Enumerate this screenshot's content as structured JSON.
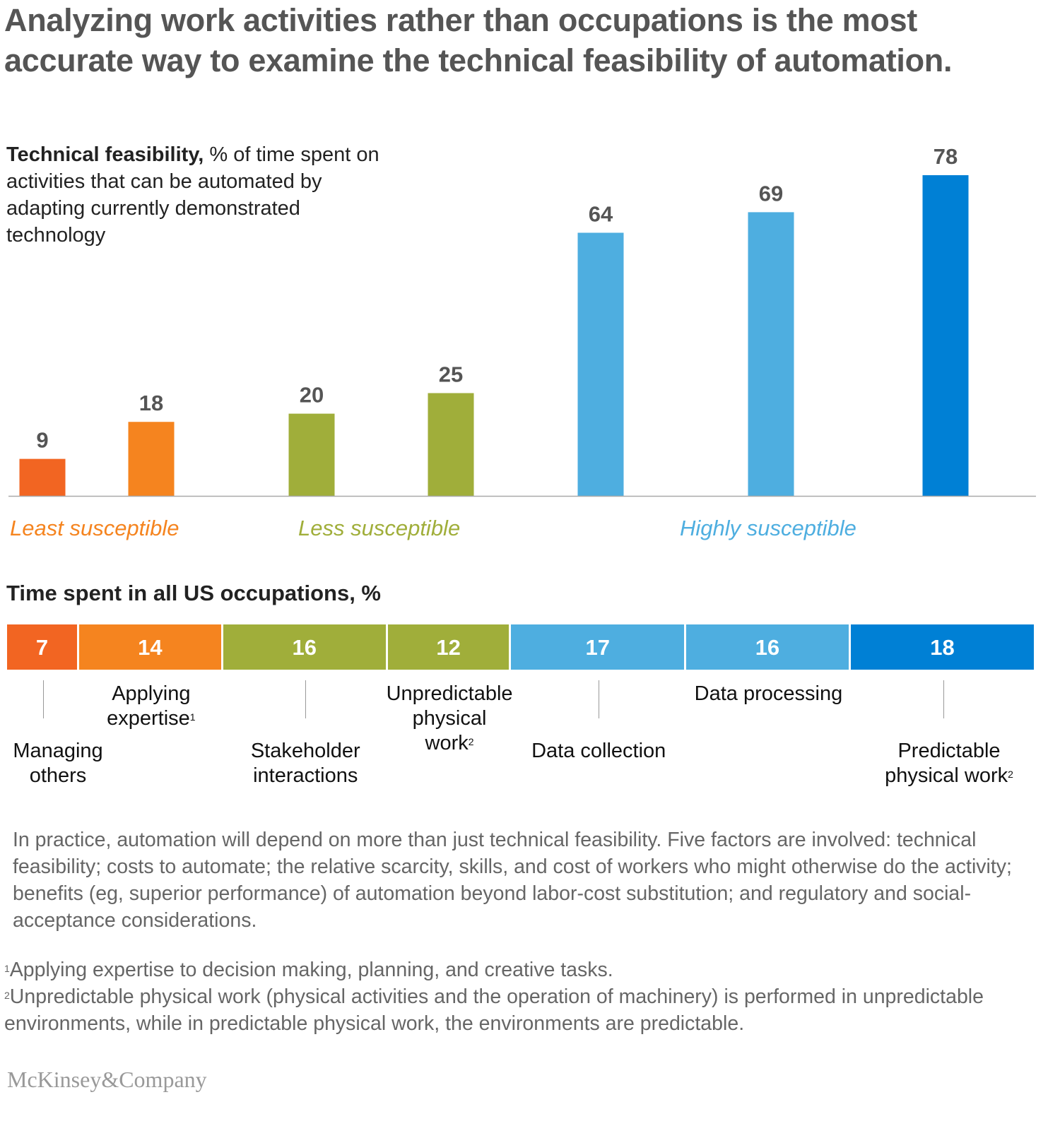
{
  "title": "Analyzing work activities rather than occupations is the most accurate way to examine the technical feasibility of automation.",
  "subtitle": {
    "bold": "Technical feasibility,",
    "rest": " % of time spent on activities that can be automated by adapting currently demonstrated technology"
  },
  "section2_title": "Time spent in all US occupations, %",
  "colors": {
    "dark_orange": "#F26522",
    "orange": "#F5841F",
    "olive": "#A0AE3A",
    "light_blue": "#4EAEE0",
    "blue": "#0080D5"
  },
  "chart_data": [
    {
      "type": "bar",
      "title": "Technical feasibility, % of time spent on activities that can be automated by adapting currently demonstrated technology",
      "categories": [
        "Managing others",
        "Applying expertise",
        "Stakeholder interactions",
        "Unpredictable physical work",
        "Data collection",
        "Data processing",
        "Predictable physical work"
      ],
      "values": [
        9,
        18,
        20,
        25,
        64,
        69,
        78
      ],
      "colors": [
        "#F26522",
        "#F5841F",
        "#A0AE3A",
        "#A0AE3A",
        "#4EAEE0",
        "#4EAEE0",
        "#0080D5"
      ],
      "ylim": [
        0,
        100
      ],
      "grid": false,
      "groups": [
        {
          "label": "Least susceptible",
          "color": "#F5841F"
        },
        {
          "label": "Less susceptible",
          "color": "#A0AE3A"
        },
        {
          "label": "Highly susceptible",
          "color": "#4EAEE0"
        }
      ]
    },
    {
      "type": "bar",
      "stacked": true,
      "title": "Time spent in all US occupations, %",
      "categories": [
        "Managing others",
        "Applying expertise",
        "Stakeholder interactions",
        "Unpredictable physical work",
        "Data collection",
        "Data processing",
        "Predictable physical work"
      ],
      "values": [
        7,
        14,
        16,
        12,
        17,
        16,
        18
      ],
      "colors": [
        "#F26522",
        "#F5841F",
        "#A0AE3A",
        "#A0AE3A",
        "#4EAEE0",
        "#4EAEE0",
        "#0080D5"
      ]
    }
  ],
  "segment_labels": [
    {
      "text": "Managing others",
      "sup": ""
    },
    {
      "text": "Applying expertise",
      "sup": "1"
    },
    {
      "text": "Stakeholder interactions",
      "sup": ""
    },
    {
      "text": "Unpredictable physical work",
      "sup": "2"
    },
    {
      "text": "Data collection",
      "sup": ""
    },
    {
      "text": "Data processing",
      "sup": ""
    },
    {
      "text": "Predictable physical work",
      "sup": "2"
    }
  ],
  "note": "In practice, automation will depend on more than just technical feasibility. Five factors are involved: technical feasibility; costs to automate; the relative scarcity, skills, and cost of workers who might otherwise do the activity; benefits (eg, superior performance) of automation beyond labor-cost substitution; and regulatory and social-acceptance considerations.",
  "footnotes": [
    {
      "mark": "1",
      "text": "Applying expertise to decision making, planning, and creative tasks."
    },
    {
      "mark": "2",
      "text": "Unpredictable physical work (physical activities and the operation of machinery) is performed in unpredictable environments, while in predictable physical work, the environments are predictable."
    }
  ],
  "logo": "McKinsey&Company"
}
